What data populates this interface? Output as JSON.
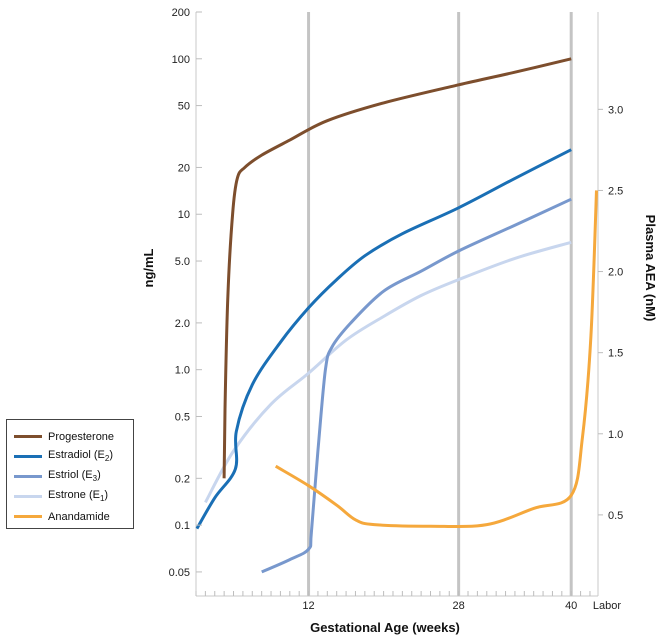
{
  "chart_data": {
    "type": "line",
    "xlabel": "Gestational Age (weeks)",
    "ylabel": "ng/mL",
    "y2label": "Plasma AEA (nM)",
    "x_ticks": [
      "12",
      "28",
      "40",
      "Labor"
    ],
    "y_ticks": [
      "200",
      "100",
      "50",
      "20",
      "10",
      "5.0",
      "2.0",
      "1.0",
      "0.5",
      "0.2",
      "0.1",
      "0.05"
    ],
    "y_scale": "log",
    "ylim": [
      0.035,
      200
    ],
    "y2_ticks": [
      "3.0",
      "2.5",
      "2.0",
      "1.5",
      "1.0",
      "0.5"
    ],
    "y2lim": [
      0,
      3.6
    ],
    "grid": "vertical lines at week 12, 28 and 40",
    "legend_position": "left of plot",
    "series": [
      {
        "name": "Progesterone",
        "color": "#7d4e2d",
        "axis": "left",
        "points": [
          [
            3,
            0.2
          ],
          [
            3.1,
            0.6
          ],
          [
            3.4,
            3
          ],
          [
            3.9,
            10
          ],
          [
            4.4,
            17
          ],
          [
            5.2,
            20
          ],
          [
            7,
            24
          ],
          [
            10,
            30
          ],
          [
            14,
            40
          ],
          [
            20,
            52
          ],
          [
            28,
            68
          ],
          [
            34,
            82
          ],
          [
            40,
            100
          ]
        ]
      },
      {
        "name": "Estradiol (E2)",
        "name_main": "Estradiol (E",
        "name_sub": "2",
        "name_end": ")",
        "color": "#1a6fb5",
        "axis": "left",
        "points": [
          [
            0.1,
            0.095
          ],
          [
            2,
            0.15
          ],
          [
            4.2,
            0.23
          ],
          [
            4.3,
            0.4
          ],
          [
            6,
            0.8
          ],
          [
            9,
            1.5
          ],
          [
            12,
            2.5
          ],
          [
            15,
            3.8
          ],
          [
            18,
            5.4
          ],
          [
            22,
            7.5
          ],
          [
            28,
            11
          ],
          [
            34,
            17
          ],
          [
            40,
            26
          ]
        ]
      },
      {
        "name": "Estriol (E3)",
        "name_main": "Estriol (E",
        "name_sub": "3",
        "name_end": ")",
        "color": "#7898cd",
        "axis": "left",
        "points": [
          [
            7,
            0.05
          ],
          [
            10,
            0.06
          ],
          [
            12,
            0.07
          ],
          [
            12.3,
            0.09
          ],
          [
            13,
            0.3
          ],
          [
            13.8,
            1.0
          ],
          [
            14.5,
            1.4
          ],
          [
            16.5,
            2.0
          ],
          [
            20,
            3.2
          ],
          [
            24,
            4.3
          ],
          [
            28,
            5.8
          ],
          [
            34,
            8.5
          ],
          [
            40,
            12.5
          ]
        ]
      },
      {
        "name": "Estrone (E1)",
        "name_main": "Estrone (E",
        "name_sub": "1",
        "name_end": ")",
        "color": "#c8d6ee",
        "axis": "left",
        "points": [
          [
            1,
            0.14
          ],
          [
            4,
            0.3
          ],
          [
            8,
            0.6
          ],
          [
            12,
            0.95
          ],
          [
            16,
            1.55
          ],
          [
            20,
            2.2
          ],
          [
            24,
            3.0
          ],
          [
            28,
            3.8
          ],
          [
            34,
            5.2
          ],
          [
            40,
            6.6
          ]
        ]
      },
      {
        "name": "Anandamide",
        "color": "#f5a83c",
        "axis": "right",
        "points": [
          [
            8.5,
            0.8
          ],
          [
            12,
            0.68
          ],
          [
            15,
            0.56
          ],
          [
            17,
            0.47
          ],
          [
            19,
            0.44
          ],
          [
            25,
            0.43
          ],
          [
            31,
            0.44
          ],
          [
            36,
            0.54
          ],
          [
            40,
            0.62
          ],
          [
            41.2,
            0.98
          ],
          [
            42.1,
            1.6
          ],
          [
            42.7,
            2.5
          ]
        ]
      }
    ]
  }
}
